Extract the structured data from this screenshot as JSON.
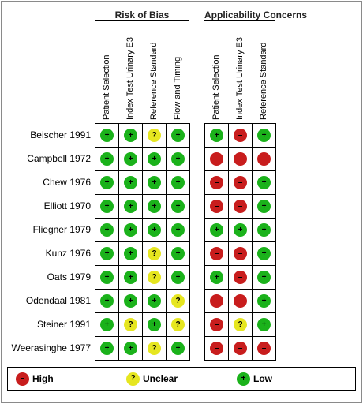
{
  "chart_data": {
    "type": "table",
    "groups": [
      {
        "title": "Risk of Bias",
        "columns": [
          "Patient Selection",
          "Index Test Urinary E3",
          "Reference Standard",
          "Flow and Timing"
        ]
      },
      {
        "title": "Applicability Concerns",
        "columns": [
          "Patient Selection",
          "Index Test Urinary E3",
          "Reference Standard"
        ]
      }
    ],
    "studies": [
      "Beischer 1991",
      "Campbell 1972",
      "Chew 1976",
      "Elliott 1970",
      "Fliegner 1979",
      "Kunz 1976",
      "Oats 1979",
      "Odendaal 1981",
      "Steiner 1991",
      "Weerasinghe 1977"
    ],
    "risk_of_bias": [
      [
        "low",
        "low",
        "unclear",
        "low"
      ],
      [
        "low",
        "low",
        "low",
        "low"
      ],
      [
        "low",
        "low",
        "low",
        "low"
      ],
      [
        "low",
        "low",
        "low",
        "low"
      ],
      [
        "low",
        "low",
        "low",
        "low"
      ],
      [
        "low",
        "low",
        "unclear",
        "low"
      ],
      [
        "low",
        "low",
        "unclear",
        "low"
      ],
      [
        "low",
        "low",
        "low",
        "unclear"
      ],
      [
        "low",
        "unclear",
        "low",
        "unclear"
      ],
      [
        "low",
        "low",
        "unclear",
        "low"
      ]
    ],
    "applicability": [
      [
        "low",
        "high",
        "low"
      ],
      [
        "high",
        "high",
        "high"
      ],
      [
        "high",
        "high",
        "low"
      ],
      [
        "high",
        "high",
        "low"
      ],
      [
        "low",
        "low",
        "low"
      ],
      [
        "high",
        "high",
        "low"
      ],
      [
        "low",
        "high",
        "low"
      ],
      [
        "high",
        "high",
        "low"
      ],
      [
        "high",
        "unclear",
        "low"
      ],
      [
        "high",
        "high",
        "high"
      ]
    ],
    "symbols": {
      "high": "–",
      "unclear": "?",
      "low": "+"
    },
    "colors": {
      "high": "#c81d1d",
      "unclear": "#e6e620",
      "low": "#1bb21b"
    },
    "legend": [
      {
        "key": "high",
        "label": "High"
      },
      {
        "key": "unclear",
        "label": "Unclear"
      },
      {
        "key": "low",
        "label": "Low"
      }
    ]
  }
}
